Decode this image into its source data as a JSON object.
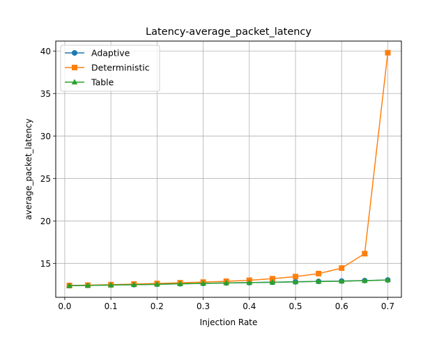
{
  "chart_data": {
    "type": "line",
    "title": "Latency-average_packet_latency",
    "xlabel": "Injection Rate",
    "ylabel": "average_packet_latency",
    "xlim": [
      -0.0195,
      0.7295
    ],
    "ylim": [
      11.01,
      41.17
    ],
    "xticks": [
      0.0,
      0.1,
      0.2,
      0.3,
      0.4,
      0.5,
      0.6,
      0.7
    ],
    "xtick_labels": [
      "0.0",
      "0.1",
      "0.2",
      "0.3",
      "0.4",
      "0.5",
      "0.6",
      "0.7"
    ],
    "yticks": [
      15,
      20,
      25,
      30,
      35,
      40
    ],
    "ytick_labels": [
      "15",
      "20",
      "25",
      "30",
      "35",
      "40"
    ],
    "grid": true,
    "legend_position": "top-left",
    "x": [
      0.01,
      0.05,
      0.1,
      0.15,
      0.2,
      0.25,
      0.3,
      0.35,
      0.4,
      0.45,
      0.5,
      0.55,
      0.6,
      0.65,
      0.7
    ],
    "series": [
      {
        "name": "Adaptive",
        "color": "#1f77b4",
        "marker": "circle",
        "values": [
          12.38,
          12.41,
          12.45,
          12.5,
          12.55,
          12.6,
          12.65,
          12.7,
          12.74,
          12.78,
          12.83,
          12.88,
          12.93,
          12.98,
          13.05
        ]
      },
      {
        "name": "Deterministic",
        "color": "#ff7f0e",
        "marker": "square",
        "values": [
          12.4,
          12.44,
          12.5,
          12.57,
          12.64,
          12.72,
          12.8,
          12.9,
          13.02,
          13.2,
          13.45,
          13.8,
          14.45,
          16.15,
          39.8
        ]
      },
      {
        "name": "Table",
        "color": "#2ca02c",
        "marker": "triangle",
        "values": [
          12.38,
          12.41,
          12.45,
          12.5,
          12.55,
          12.6,
          12.65,
          12.7,
          12.74,
          12.78,
          12.83,
          12.88,
          12.91,
          12.97,
          13.05
        ]
      }
    ]
  }
}
